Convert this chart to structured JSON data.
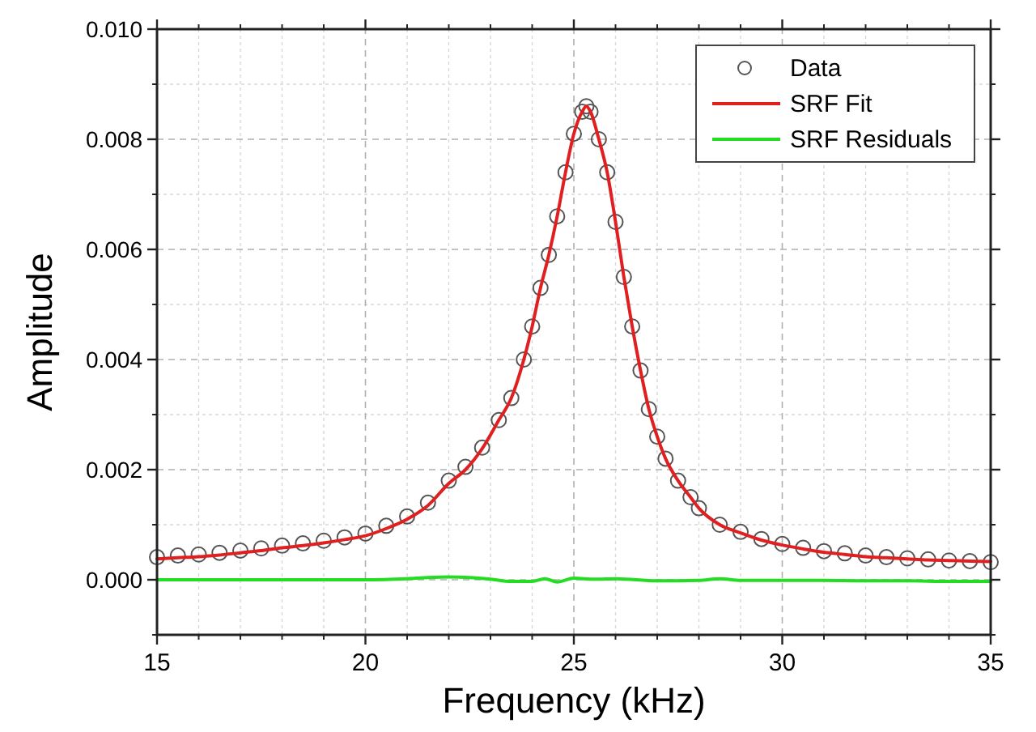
{
  "chart_data": {
    "type": "scatter",
    "xlabel": "Frequency (kHz)",
    "ylabel": "Amplitude",
    "xlim": [
      15,
      35
    ],
    "xticks": [
      15,
      20,
      25,
      30,
      35
    ],
    "ylim": [
      -0.001,
      0.01
    ],
    "yticks": [
      {
        "value": 0,
        "label": "0.000"
      },
      {
        "value": 0.002,
        "label": "0.002"
      },
      {
        "value": 0.004,
        "label": "0.004"
      },
      {
        "value": 0.006,
        "label": "0.006"
      },
      {
        "value": 0.008,
        "label": "0.008"
      },
      {
        "value": 0.01,
        "label": "0.010"
      }
    ],
    "grid": true,
    "legend": "top right",
    "series": [
      {
        "name": "Data",
        "marker": "circle",
        "color": "#555555",
        "x": [
          15,
          15.5,
          16,
          16.5,
          17,
          17.5,
          18,
          18.5,
          19,
          19.5,
          20,
          20.5,
          21,
          21.5,
          22,
          22.4,
          22.8,
          23.2,
          23.5,
          23.8,
          24,
          24.2,
          24.4,
          24.6,
          24.8,
          25,
          25.2,
          25.3,
          25.4,
          25.6,
          25.8,
          26,
          26.2,
          26.4,
          26.6,
          26.8,
          27,
          27.2,
          27.5,
          27.8,
          28,
          28.5,
          29,
          29.5,
          30,
          30.5,
          31,
          31.5,
          32,
          32.5,
          33,
          33.5,
          34,
          34.5,
          35
        ],
        "values": [
          0.00041,
          0.00044,
          0.00046,
          0.00049,
          0.00053,
          0.00057,
          0.00062,
          0.00066,
          0.00071,
          0.00077,
          0.00084,
          0.00098,
          0.00115,
          0.0014,
          0.0018,
          0.00205,
          0.0024,
          0.0029,
          0.0033,
          0.004,
          0.0046,
          0.0053,
          0.0059,
          0.0066,
          0.0074,
          0.0081,
          0.0085,
          0.0086,
          0.0085,
          0.008,
          0.0074,
          0.0065,
          0.0055,
          0.0046,
          0.0038,
          0.0031,
          0.0026,
          0.0022,
          0.0018,
          0.0015,
          0.0013,
          0.001,
          0.00087,
          0.00074,
          0.00065,
          0.00058,
          0.00052,
          0.00048,
          0.00044,
          0.00041,
          0.00039,
          0.00037,
          0.00035,
          0.00034,
          0.00032
        ]
      },
      {
        "name": "SRF Fit",
        "type": "line",
        "line_style": "solid",
        "color": "#e02020",
        "x": [
          15,
          15.5,
          16,
          16.5,
          17,
          17.5,
          18,
          18.5,
          19,
          19.5,
          20,
          20.5,
          21,
          21.5,
          22,
          22.4,
          22.8,
          23.2,
          23.5,
          23.8,
          24,
          24.2,
          24.4,
          24.6,
          24.8,
          25,
          25.2,
          25.3,
          25.4,
          25.6,
          25.8,
          26,
          26.2,
          26.4,
          26.6,
          26.8,
          27,
          27.2,
          27.5,
          27.8,
          28,
          28.5,
          29,
          29.5,
          30,
          30.5,
          31,
          31.5,
          32,
          32.5,
          33,
          33.5,
          34,
          34.5,
          35
        ],
        "values": [
          0.00038,
          0.0004,
          0.00042,
          0.00045,
          0.00049,
          0.00053,
          0.00058,
          0.00062,
          0.00067,
          0.00073,
          0.0008,
          0.00093,
          0.0011,
          0.00135,
          0.00175,
          0.002,
          0.00238,
          0.0029,
          0.0033,
          0.004,
          0.0046,
          0.0053,
          0.0059,
          0.0066,
          0.0074,
          0.0081,
          0.0085,
          0.0086,
          0.0085,
          0.008,
          0.0074,
          0.0065,
          0.0055,
          0.0046,
          0.0038,
          0.0031,
          0.0026,
          0.0022,
          0.0018,
          0.0015,
          0.0013,
          0.001,
          0.00085,
          0.00072,
          0.00063,
          0.00056,
          0.0005,
          0.00046,
          0.00042,
          0.0004,
          0.00038,
          0.00036,
          0.00035,
          0.00034,
          0.00033
        ]
      },
      {
        "name": "SRF Residuals",
        "type": "line",
        "line_style": "solid",
        "color": "#22dd22",
        "x": [
          15,
          16,
          17,
          18,
          19,
          20,
          21,
          21.5,
          22,
          22.5,
          23,
          23.5,
          24,
          24.3,
          24.6,
          25,
          25.5,
          26,
          27,
          28,
          28.5,
          29,
          30,
          31,
          32,
          33,
          34,
          35
        ],
        "values": [
          0,
          0,
          0,
          0,
          0,
          0,
          2e-05,
          4e-05,
          5e-05,
          4e-05,
          1e-05,
          -3e-05,
          -3e-05,
          2e-05,
          -4e-05,
          3e-05,
          1e-05,
          2e-05,
          -2e-05,
          -1e-05,
          2e-05,
          -1e-05,
          -1e-05,
          -1e-05,
          -2e-05,
          -2e-05,
          -3e-05,
          -3e-05
        ]
      }
    ]
  }
}
